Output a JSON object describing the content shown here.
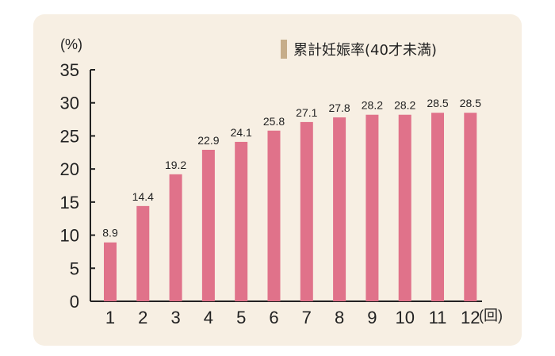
{
  "chart_data": {
    "type": "bar",
    "categories": [
      "1",
      "2",
      "3",
      "4",
      "5",
      "6",
      "7",
      "8",
      "9",
      "10",
      "11",
      "12"
    ],
    "values": [
      8.9,
      14.4,
      19.2,
      22.9,
      24.1,
      25.8,
      27.1,
      27.8,
      28.2,
      28.2,
      28.5,
      28.5
    ],
    "value_labels": [
      "8.9",
      "14.4",
      "19.2",
      "22.9",
      "24.1",
      "25.8",
      "27.1",
      "27.8",
      "28.2",
      "28.2",
      "28.5",
      "28.5"
    ],
    "yticks": [
      "0",
      "5",
      "10",
      "15",
      "20",
      "25",
      "30",
      "35"
    ],
    "ylim": [
      0,
      35
    ],
    "ylabel": "(%)",
    "xlabel": "(回)",
    "legend": {
      "label": "累計妊娠率(40才未満)",
      "position": "top-right"
    },
    "grid": false
  },
  "colors": {
    "bar": "#e0728a",
    "legend_swatch": "#c6ad8a",
    "panel": "#f7efe3",
    "axis": "#222222"
  }
}
